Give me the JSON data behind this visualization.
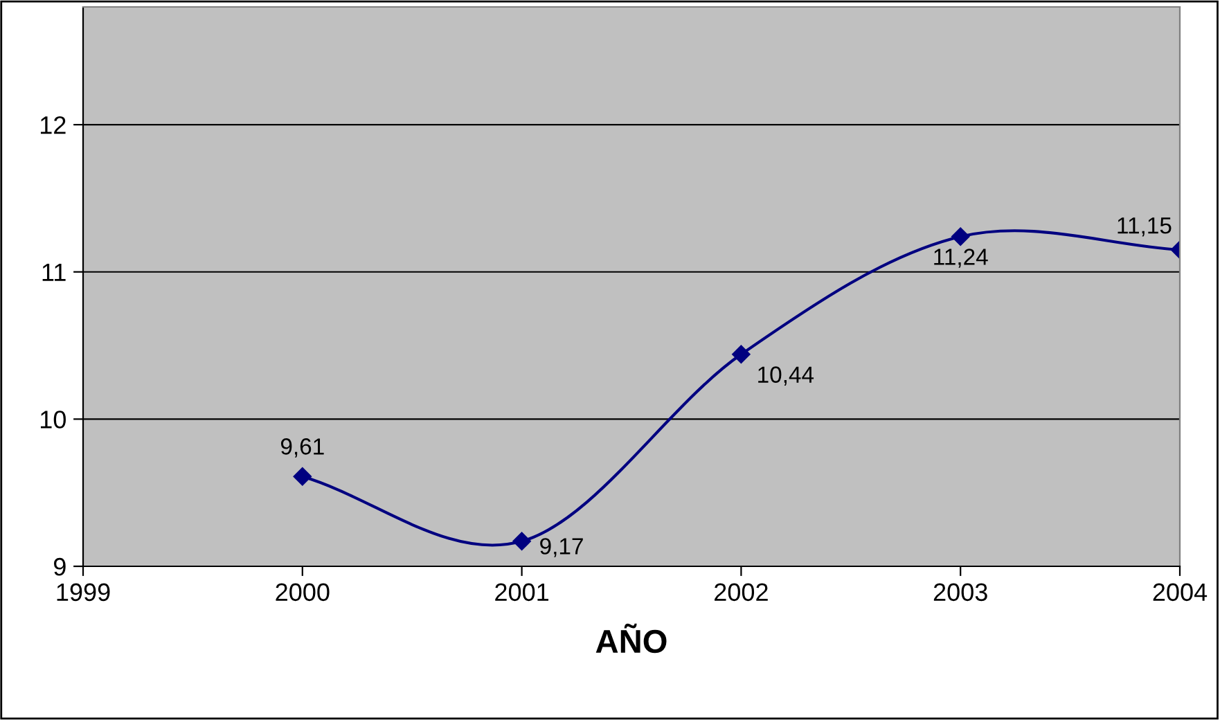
{
  "chart_data": {
    "type": "line",
    "xlabel": "AÑO",
    "x": [
      2000,
      2001,
      2002,
      2003,
      2004
    ],
    "series": [
      {
        "color": "#000080",
        "values": [
          9.61,
          9.17,
          10.44,
          11.24,
          11.15
        ],
        "value_labels": [
          "9,61",
          "9,17",
          "10,44",
          "11,24",
          "11,15"
        ]
      }
    ],
    "xlim": [
      1999,
      2004
    ],
    "xticks": [
      1999,
      2000,
      2001,
      2002,
      2003,
      2004
    ],
    "ylim": [
      9,
      12.8
    ],
    "yticks": [
      9,
      10,
      11,
      12
    ],
    "grid": "y",
    "marker": "diamond",
    "line_style": "solid",
    "legend": false
  }
}
